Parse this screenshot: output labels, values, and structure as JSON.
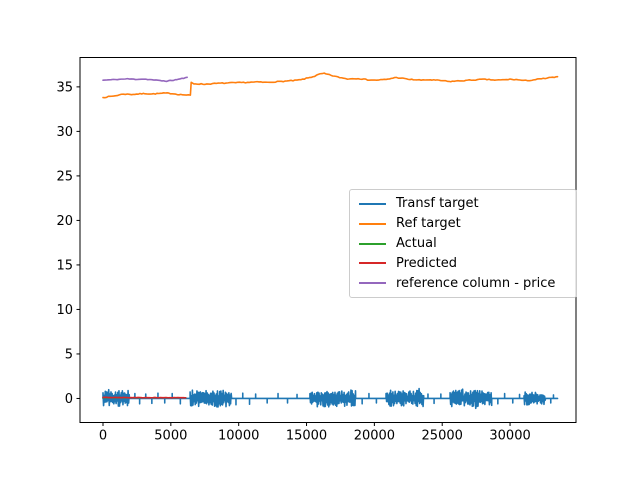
{
  "window": {
    "background": "#ffffff"
  },
  "chart_data": {
    "type": "line",
    "title": "",
    "xlabel": "",
    "ylabel": "",
    "grid": false,
    "xlim": [
      -1695,
      34860
    ],
    "ylim": [
      -2.7,
      38.3
    ],
    "xticks": [
      0,
      5000,
      10000,
      15000,
      20000,
      25000,
      30000
    ],
    "yticks": [
      0,
      5,
      10,
      15,
      20,
      25,
      30,
      35
    ],
    "axis_color": "#000000",
    "legend": {
      "position": "center right",
      "border_color": "#cccccc",
      "background": "rgba(255,255,255,0.8)"
    },
    "series": [
      {
        "name": "Transf target",
        "color": "#1f77b4",
        "render": "noise",
        "baseline": 0,
        "x_start": 0,
        "x_end": 33500,
        "seed": 42,
        "clusters": [
          [
            0,
            1950,
            0.9
          ],
          [
            6420,
            9480,
            0.95
          ],
          [
            15250,
            18620,
            0.95
          ],
          [
            20860,
            23640,
            0.9
          ],
          [
            25580,
            28650,
            0.9
          ],
          [
            31030,
            32620,
            0.75
          ]
        ],
        "spikes": [
          [
            2350,
            0.55
          ],
          [
            2700,
            -0.6
          ],
          [
            3150,
            0.5
          ],
          [
            3600,
            -0.55
          ],
          [
            4050,
            0.6
          ],
          [
            4550,
            -0.5
          ],
          [
            5100,
            0.55
          ],
          [
            5700,
            -0.6
          ],
          [
            9800,
            -0.7
          ],
          [
            10300,
            0.6
          ],
          [
            10800,
            -0.65
          ],
          [
            11250,
            0.5
          ],
          [
            12100,
            -0.5
          ],
          [
            12900,
            0.55
          ],
          [
            13600,
            -0.5
          ],
          [
            14300,
            0.45
          ],
          [
            19100,
            -0.6
          ],
          [
            19600,
            0.55
          ],
          [
            20150,
            -0.5
          ],
          [
            23950,
            0.5
          ],
          [
            24400,
            -0.55
          ],
          [
            24900,
            0.5
          ],
          [
            29100,
            -0.6
          ],
          [
            29600,
            0.55
          ],
          [
            30200,
            -0.5
          ],
          [
            30700,
            0.45
          ],
          [
            33000,
            -0.5
          ],
          [
            33200,
            0.4
          ]
        ]
      },
      {
        "name": "Ref target",
        "color": "#ff7f0e",
        "render": "line",
        "jitter": 0.05,
        "seed": 7,
        "points": [
          [
            0,
            33.8
          ],
          [
            400,
            33.9
          ],
          [
            900,
            34.0
          ],
          [
            1500,
            34.2
          ],
          [
            2100,
            34.15
          ],
          [
            2600,
            34.2
          ],
          [
            3100,
            34.25
          ],
          [
            3600,
            34.2
          ],
          [
            4100,
            34.25
          ],
          [
            4600,
            34.3
          ],
          [
            5100,
            34.25
          ],
          [
            5600,
            34.15
          ],
          [
            6000,
            34.1
          ],
          [
            6440,
            34.05
          ],
          [
            6500,
            35.5
          ],
          [
            6700,
            35.35
          ],
          [
            7500,
            35.3
          ],
          [
            8500,
            35.4
          ],
          [
            9500,
            35.45
          ],
          [
            10500,
            35.5
          ],
          [
            11500,
            35.55
          ],
          [
            12000,
            35.5
          ],
          [
            13000,
            35.6
          ],
          [
            14000,
            35.7
          ],
          [
            14600,
            35.8
          ],
          [
            15100,
            36.0
          ],
          [
            15600,
            36.2
          ],
          [
            16000,
            36.45
          ],
          [
            16300,
            36.5
          ],
          [
            16800,
            36.3
          ],
          [
            17300,
            36.1
          ],
          [
            18000,
            35.9
          ],
          [
            18800,
            35.95
          ],
          [
            19500,
            35.8
          ],
          [
            20000,
            35.75
          ],
          [
            20600,
            35.8
          ],
          [
            21000,
            35.85
          ],
          [
            21500,
            36.05
          ],
          [
            21900,
            36.0
          ],
          [
            22500,
            35.85
          ],
          [
            23000,
            35.8
          ],
          [
            23600,
            35.75
          ],
          [
            24000,
            35.8
          ],
          [
            24500,
            35.75
          ],
          [
            25000,
            35.7
          ],
          [
            25500,
            35.6
          ],
          [
            26000,
            35.65
          ],
          [
            26600,
            35.7
          ],
          [
            27000,
            35.75
          ],
          [
            27600,
            35.8
          ],
          [
            28000,
            35.85
          ],
          [
            28600,
            35.8
          ],
          [
            29000,
            35.75
          ],
          [
            29600,
            35.8
          ],
          [
            30000,
            35.85
          ],
          [
            30600,
            35.8
          ],
          [
            31000,
            35.7
          ],
          [
            31600,
            35.75
          ],
          [
            32000,
            35.85
          ],
          [
            32600,
            35.95
          ],
          [
            33000,
            36.05
          ],
          [
            33500,
            36.1
          ]
        ]
      },
      {
        "name": "Actual",
        "color": "#2ca02c",
        "render": "line",
        "jitter": 0.0,
        "seed": 3,
        "points": [
          [
            0,
            0.08
          ],
          [
            6100,
            0.08
          ]
        ]
      },
      {
        "name": "Predicted",
        "color": "#d62728",
        "render": "line",
        "jitter": 0.02,
        "seed": 5,
        "points": [
          [
            0,
            0.12
          ],
          [
            1500,
            0.1
          ],
          [
            3000,
            0.1
          ],
          [
            4500,
            0.09
          ],
          [
            6100,
            0.08
          ]
        ]
      },
      {
        "name": "reference column - price",
        "color": "#9467bd",
        "render": "line",
        "jitter": 0.04,
        "seed": 11,
        "points": [
          [
            0,
            35.75
          ],
          [
            600,
            35.8
          ],
          [
            1200,
            35.85
          ],
          [
            1800,
            35.9
          ],
          [
            2400,
            35.85
          ],
          [
            3000,
            35.88
          ],
          [
            3600,
            35.8
          ],
          [
            4200,
            35.7
          ],
          [
            4700,
            35.65
          ],
          [
            5200,
            35.75
          ],
          [
            5700,
            35.9
          ],
          [
            6200,
            36.05
          ]
        ]
      }
    ]
  }
}
